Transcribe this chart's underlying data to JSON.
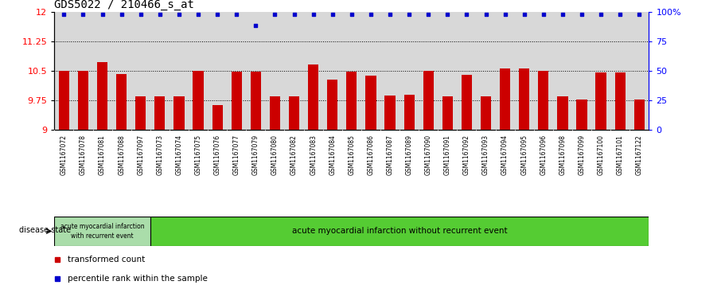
{
  "title": "GDS5022 / 210466_s_at",
  "samples": [
    "GSM1167072",
    "GSM1167078",
    "GSM1167081",
    "GSM1167088",
    "GSM1167097",
    "GSM1167073",
    "GSM1167074",
    "GSM1167075",
    "GSM1167076",
    "GSM1167077",
    "GSM1167079",
    "GSM1167080",
    "GSM1167082",
    "GSM1167083",
    "GSM1167084",
    "GSM1167085",
    "GSM1167086",
    "GSM1167087",
    "GSM1167089",
    "GSM1167090",
    "GSM1167091",
    "GSM1167092",
    "GSM1167093",
    "GSM1167094",
    "GSM1167095",
    "GSM1167096",
    "GSM1167098",
    "GSM1167099",
    "GSM1167100",
    "GSM1167101",
    "GSM1167122"
  ],
  "bar_values": [
    10.5,
    10.5,
    10.72,
    10.42,
    9.85,
    9.85,
    9.85,
    10.5,
    9.63,
    10.48,
    10.48,
    9.85,
    9.85,
    10.65,
    10.28,
    10.47,
    10.38,
    9.87,
    9.9,
    10.5,
    9.85,
    10.4,
    9.85,
    10.55,
    10.55,
    10.5,
    9.85,
    9.78,
    10.45,
    10.45,
    9.78
  ],
  "percentile_values": [
    11.92,
    11.92,
    11.92,
    11.92,
    11.92,
    11.92,
    11.92,
    11.92,
    11.92,
    11.92,
    11.65,
    11.92,
    11.92,
    11.92,
    11.92,
    11.92,
    11.92,
    11.92,
    11.92,
    11.92,
    11.92,
    11.92,
    11.92,
    11.92,
    11.92,
    11.92,
    11.92,
    11.92,
    11.92,
    11.92,
    11.92
  ],
  "bar_color": "#cc0000",
  "percentile_color": "#0000cc",
  "ymin": 9.0,
  "ymax": 12.0,
  "yticks_left": [
    9.0,
    9.75,
    10.5,
    11.25,
    12.0
  ],
  "yticks_right_labels": [
    "100%",
    "75",
    "50",
    "25",
    "0"
  ],
  "yticks_right_pct": [
    100,
    75,
    50,
    25,
    0
  ],
  "hlines": [
    9.75,
    10.5,
    11.25
  ],
  "group1_label": "acute myocardial infarction\nwith recurrent event",
  "group2_label": "acute myocardial infarction without recurrent event",
  "group1_count": 5,
  "disease_state_label": "disease state",
  "legend1": "transformed count",
  "legend2": "percentile rank within the sample",
  "plot_bg_color": "#d8d8d8",
  "xtick_bg_color": "#d0d0d0",
  "group1_color": "#aaddaa",
  "group2_color": "#55cc33",
  "title_fontsize": 10,
  "bar_width": 0.55
}
